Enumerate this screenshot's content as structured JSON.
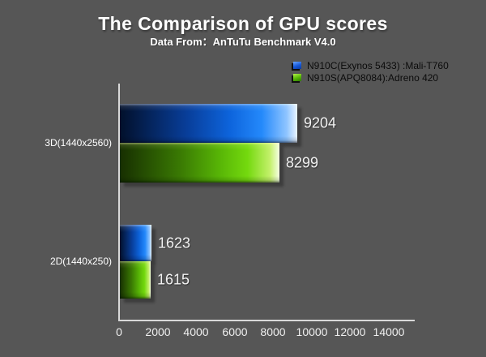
{
  "header": {
    "title": "The Comparison of GPU scores",
    "subtitle": "Data From：AnTuTu Benchmark V4.0"
  },
  "colors": {
    "background": "#565656",
    "axis": "#d9d9d9",
    "title_text": "#ffffff",
    "legend_text": "#0b0b0b",
    "value_text": "#f2f2f2",
    "series_blue": "#0d64dc",
    "series_green": "#57b406"
  },
  "chart_data": {
    "type": "bar",
    "orientation": "horizontal",
    "title": "The Comparison of GPU scores",
    "subtitle": "Data From：AnTuTu Benchmark V4.0",
    "categories": [
      "3D(1440x2560)",
      "2D(1440x250)"
    ],
    "series": [
      {
        "name": "N910C(Exynos 5433) :Mali-T760",
        "color": "#0d64dc",
        "values": [
          9204,
          1623
        ]
      },
      {
        "name": "N910S(APQ8084):Adreno 420",
        "color": "#57b406",
        "values": [
          8299,
          1615
        ]
      }
    ],
    "xticks": [
      0,
      2000,
      4000,
      6000,
      8000,
      10000,
      12000,
      14000
    ],
    "xlim": [
      0,
      15300
    ],
    "grid": false,
    "value_labels": true,
    "legend_position": "top-right"
  }
}
